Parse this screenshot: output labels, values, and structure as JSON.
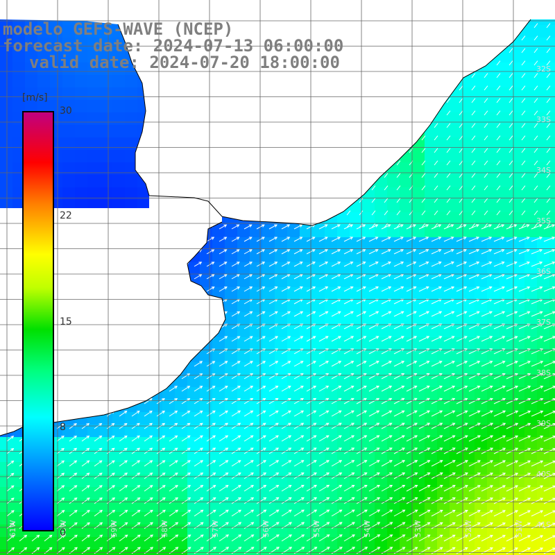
{
  "title": {
    "line1": "modelo GEFS-WAVE (NCEP)",
    "line2": "forecast date: 2024-07-13 06:00:00",
    "line3": "valid date: 2024-07-20 18:00:00"
  },
  "colorbar": {
    "units": "[m/s]",
    "ticks": [
      {
        "label": "30",
        "value": 30
      },
      {
        "label": "22",
        "value": 22
      },
      {
        "label": "15",
        "value": 15
      },
      {
        "label": "8",
        "value": 8
      },
      {
        "label": "0",
        "value": 0
      }
    ],
    "range": [
      0,
      30
    ],
    "colors": [
      "#0000ff",
      "#00a0ff",
      "#00ffff",
      "#00ff40",
      "#80ff00",
      "#ffff00",
      "#ff8000",
      "#ff0000",
      "#ff0080",
      "#c00080"
    ]
  },
  "map": {
    "lon_range": [
      -62,
      -51
    ],
    "lat_range": [
      -41.5,
      -30
    ],
    "lat_labels": [
      "32S",
      "33S",
      "34S",
      "35S",
      "36S",
      "37S",
      "38S",
      "39S",
      "40S",
      "41S"
    ],
    "lon_labels": [
      "61W",
      "60W",
      "59W",
      "58W",
      "57W",
      "56W",
      "55W",
      "54W",
      "53W",
      "52W",
      "51W"
    ],
    "field": "wind speed",
    "land_color": "#ffffff",
    "grid_color": "#666666",
    "coast_color": "#000000",
    "arrow_color": "#ffffff"
  }
}
